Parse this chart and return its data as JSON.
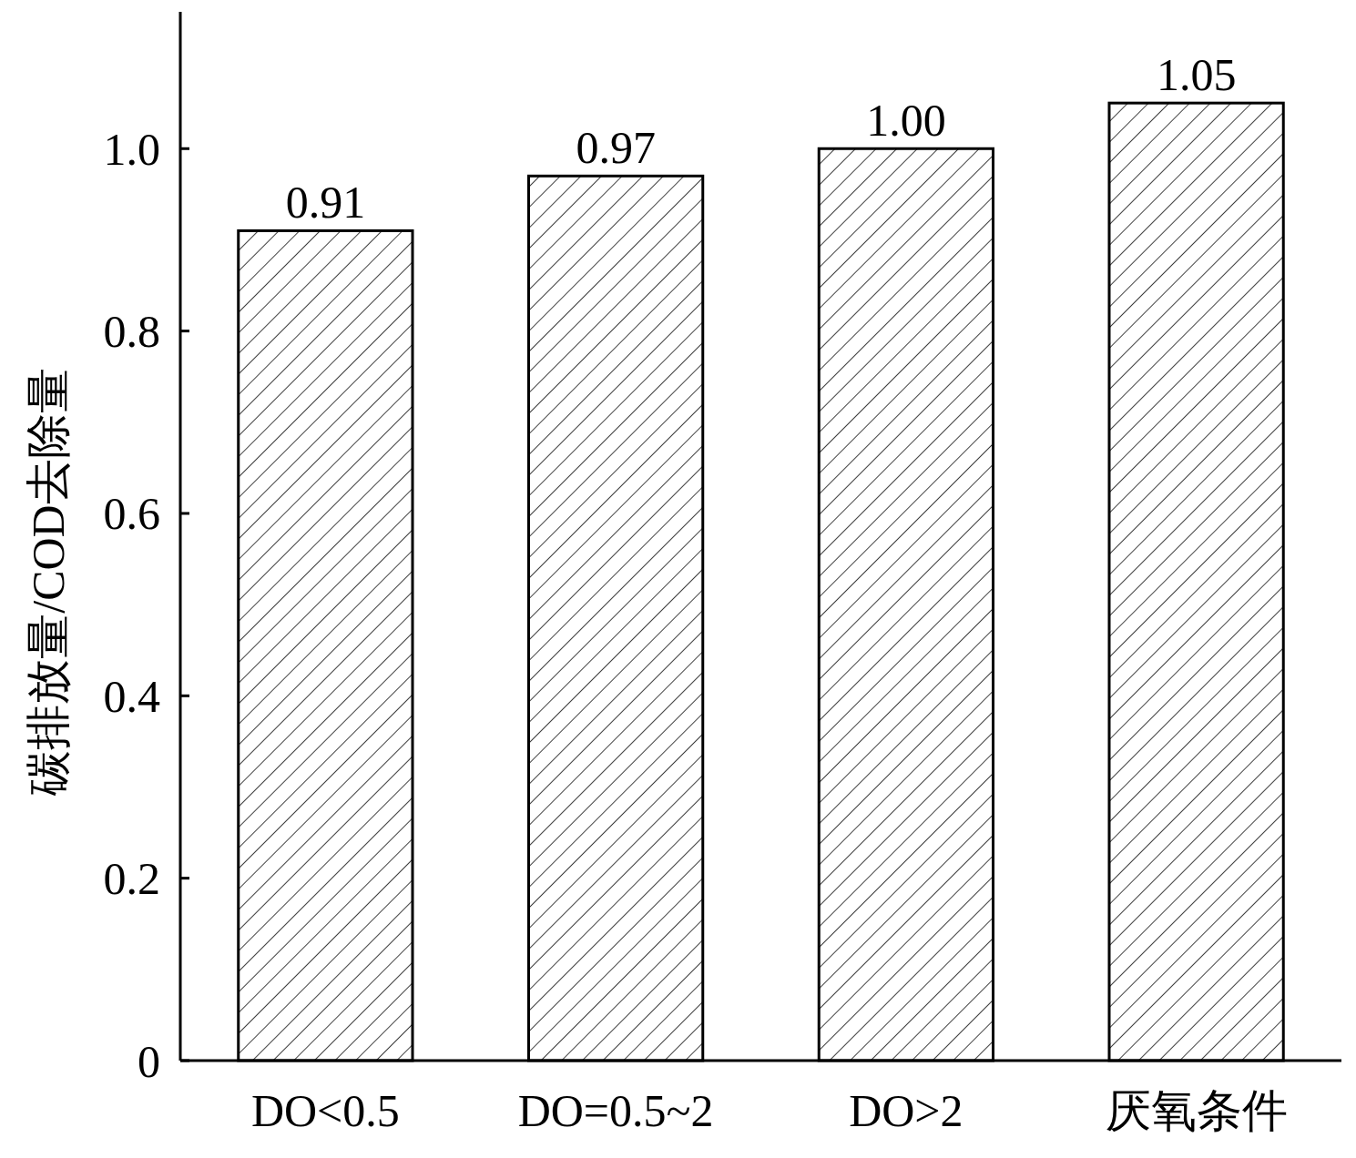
{
  "chart_data": {
    "type": "bar",
    "ylabel": "碳排放量/COD去除量",
    "categories": [
      "DO<0.5",
      "DO=0.5~2",
      "DO>2",
      "厌氧条件"
    ],
    "values": [
      0.91,
      0.97,
      1.0,
      1.05
    ],
    "value_labels": [
      "0.91",
      "0.97",
      "1.00",
      "1.05"
    ],
    "color": "#ffffff",
    "ylim": [
      0,
      1.15
    ],
    "yticks": [
      0,
      0.2,
      0.4,
      0.6,
      0.8,
      {
        "value": 1,
        "label": "1.0"
      }
    ],
    "grid": false
  }
}
